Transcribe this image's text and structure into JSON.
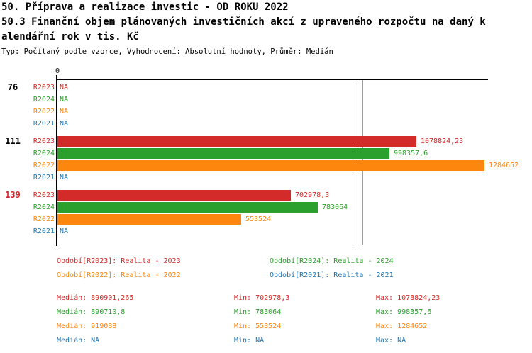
{
  "header": {
    "title_line1": "50. Příprava a realizace investic - OD ROKU 2022",
    "title_line2": "50.3 Finanční objem plánovaných investičních akcí z upraveného rozpočtu na daný k",
    "title_line3": "alendářní rok v tis. Kč",
    "meta": "Typ: Počítaný podle vzorce, Vyhodnocení: Absolutní hodnoty, Průměr: Medián"
  },
  "chart_data": {
    "type": "bar",
    "orientation": "horizontal",
    "title": "50.3 Finanční objem plánovaných investičních akcí z upraveného rozpočtu na daný kalendářní rok v tis. Kč",
    "unit": "tis. Kč",
    "categories": [
      "76",
      "111",
      "139"
    ],
    "category_colors": [
      "#000000",
      "#000000",
      "#d32a2a"
    ],
    "axis": {
      "zero_label": "0",
      "x_min": 0,
      "x_max": 1284652
    },
    "na_label": "NA",
    "grid": false,
    "legend_position": "bottom",
    "series": [
      {
        "name": "R2023",
        "color": "#d32a2a",
        "values": [
          null,
          1078824.23,
          702978.3
        ],
        "value_labels": [
          "NA",
          "1078824,23",
          "702978,3"
        ],
        "median": 890901.265
      },
      {
        "name": "R2024",
        "color": "#2ca02c",
        "values": [
          null,
          998357.6,
          783064
        ],
        "value_labels": [
          "NA",
          "998357,6",
          "783064"
        ],
        "median": 890710.8
      },
      {
        "name": "R2022",
        "color": "#fd870e",
        "values": [
          null,
          1284652,
          553524
        ],
        "value_labels": [
          "NA",
          "1284652",
          "553524"
        ],
        "median": 919088
      },
      {
        "name": "R2021",
        "color": "#1f77b4",
        "values": [
          null,
          null,
          null
        ],
        "value_labels": [
          "NA",
          "NA",
          "NA"
        ],
        "median": null
      }
    ],
    "median_lines": [
      {
        "series": "R2023",
        "value": 890901.265,
        "color": "#d32a2a"
      },
      {
        "series": "R2024",
        "value": 890710.8,
        "color": "#2ca02c"
      },
      {
        "series": "R2022",
        "value": 919088,
        "color": "#fd870e"
      }
    ]
  },
  "legend": {
    "items": [
      {
        "label": "Období[R2023]: Realita - 2023",
        "color": "#d32a2a"
      },
      {
        "label": "Období[R2024]: Realita - 2024",
        "color": "#2ca02c"
      },
      {
        "label": "Období[R2022]: Realita - 2022",
        "color": "#fd870e"
      },
      {
        "label": "Období[R2021]: Realita - 2021",
        "color": "#1f77b4"
      }
    ]
  },
  "stats": {
    "rows": [
      {
        "color": "#d32a2a",
        "median": "Medián: 890901,265",
        "min": "Min: 702978,3",
        "max": "Max: 1078824,23"
      },
      {
        "color": "#2ca02c",
        "median": "Medián: 890710,8",
        "min": "Min: 783064",
        "max": "Max: 998357,6"
      },
      {
        "color": "#fd870e",
        "median": "Medián: 919088",
        "min": "Min: 553524",
        "max": "Max: 1284652"
      },
      {
        "color": "#1f77b4",
        "median": "Medián: NA",
        "min": "Min: NA",
        "max": "Max: NA"
      }
    ]
  }
}
